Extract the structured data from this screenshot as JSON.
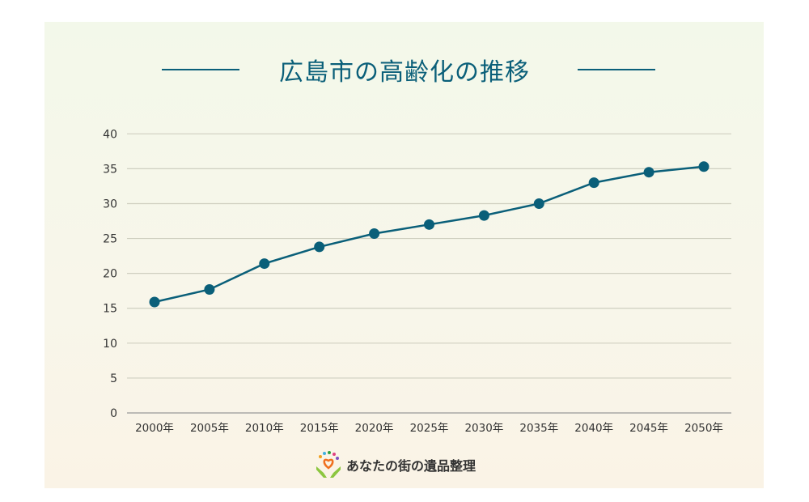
{
  "chart_data": {
    "type": "line",
    "title": "広島市の高齢化の推移",
    "xlabel": "",
    "ylabel": "",
    "categories": [
      "2000年",
      "2005年",
      "2010年",
      "2015年",
      "2020年",
      "2025年",
      "2030年",
      "2035年",
      "2040年",
      "2045年",
      "2050年"
    ],
    "values": [
      15.9,
      17.7,
      21.4,
      23.8,
      25.7,
      27.0,
      28.3,
      30.0,
      33.0,
      34.5,
      35.3
    ],
    "ylim": [
      0,
      40
    ],
    "yticks": [
      0,
      5,
      10,
      15,
      20,
      25,
      30,
      35,
      40
    ],
    "grid": true,
    "legend": "none",
    "colors": {
      "line": "#0a5f79",
      "grid": "#cfcfc0",
      "title": "#0a5f79"
    }
  },
  "footer": {
    "logo_text": "あなたの街の遺品整理"
  }
}
